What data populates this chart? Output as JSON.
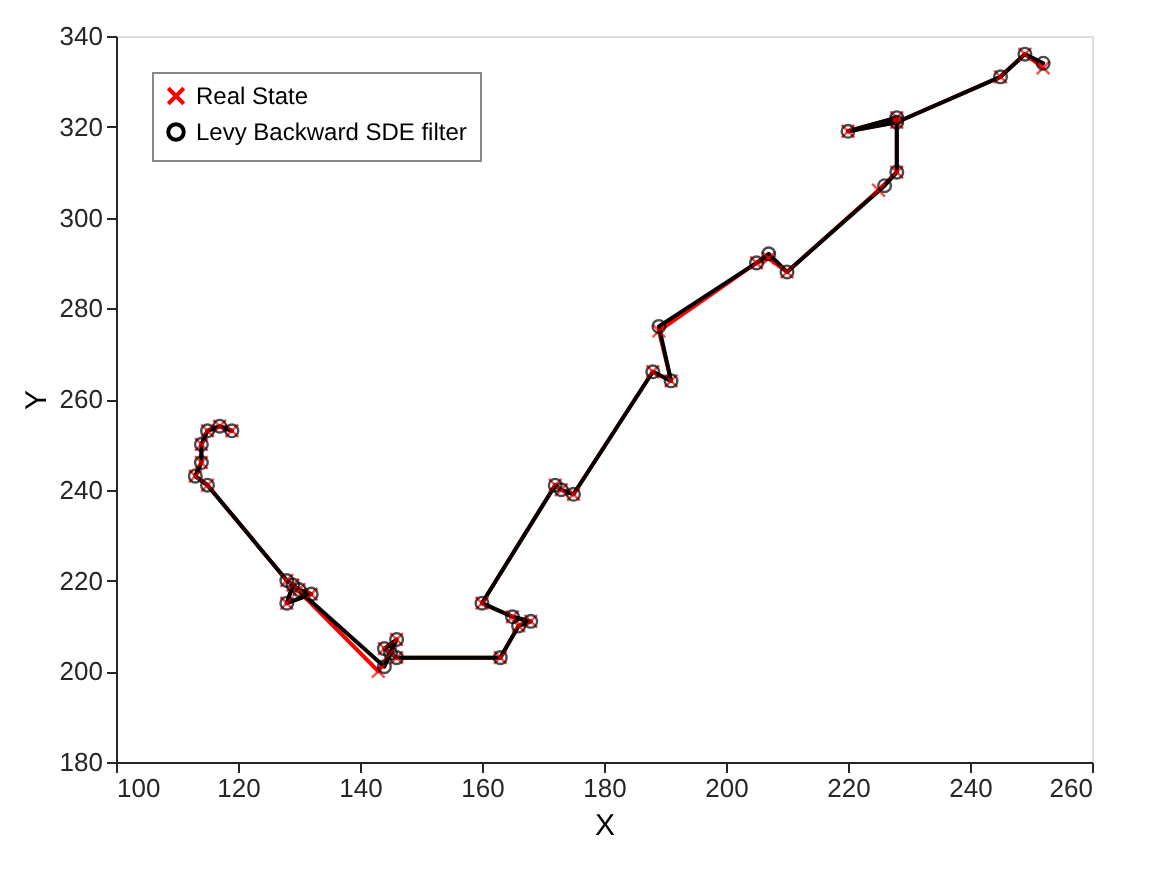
{
  "chart_data": {
    "type": "line",
    "xlabel": "X",
    "ylabel": "Y",
    "xlim": [
      100,
      260
    ],
    "xticks": [
      100,
      120,
      140,
      160,
      180,
      200,
      220,
      240,
      260
    ],
    "ylim": [
      180,
      340
    ],
    "yticks": [
      180,
      200,
      220,
      240,
      260,
      280,
      300,
      320,
      340
    ],
    "grid": false,
    "legend": "top left",
    "series": [
      {
        "name": "Real State",
        "color": "#ff0000",
        "marker": "cross",
        "x": [
          119,
          117,
          115,
          114,
          114,
          113,
          115,
          128,
          130,
          132,
          128,
          129,
          143,
          145,
          146,
          144,
          146,
          163,
          166,
          168,
          165,
          160,
          172,
          173,
          175,
          188,
          191,
          189,
          205,
          207,
          210,
          225,
          228,
          228,
          220,
          228,
          245,
          249,
          252
        ],
        "values": [
          253,
          254,
          253,
          250,
          246,
          243,
          241,
          220,
          218,
          217,
          215,
          219,
          200,
          204,
          207,
          205,
          203,
          203,
          210,
          211,
          212,
          215,
          241,
          240,
          239,
          266,
          264,
          275,
          290,
          291,
          288,
          306,
          310,
          322,
          319,
          321,
          331,
          336,
          333
        ]
      },
      {
        "name": "Levy Backward SDE filter",
        "color": "#000000",
        "marker": "circle",
        "x": [
          119,
          117,
          115,
          114,
          114,
          113,
          115,
          128,
          130,
          132,
          128,
          129,
          144,
          145,
          146,
          144,
          146,
          163,
          166,
          168,
          165,
          160,
          172,
          173,
          175,
          188,
          191,
          189,
          205,
          207,
          210,
          226,
          228,
          228,
          220,
          228,
          245,
          249,
          252
        ],
        "values": [
          253,
          254,
          253,
          250,
          246,
          243,
          241,
          220,
          218,
          217,
          215,
          219,
          201,
          204,
          207,
          205,
          203,
          203,
          210,
          211,
          212,
          215,
          241,
          240,
          239,
          266,
          264,
          276,
          290,
          292,
          288,
          307,
          310,
          322,
          319,
          321,
          331,
          336,
          334
        ]
      }
    ]
  }
}
